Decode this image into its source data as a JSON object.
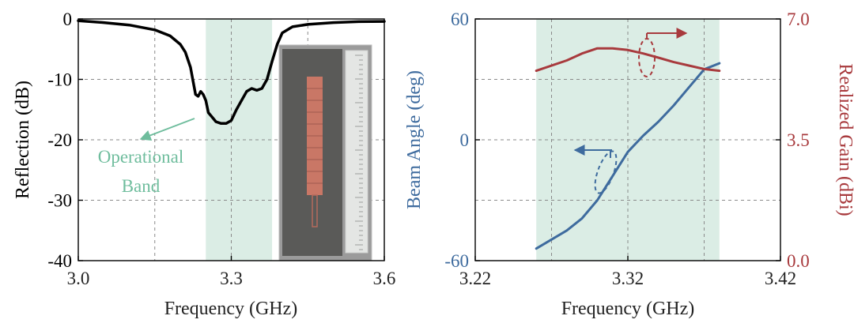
{
  "chart_data": [
    {
      "type": "line",
      "xlabel": "Frequency (GHz)",
      "ylabel": "Reflection (dB)",
      "xlim": [
        3.0,
        3.6
      ],
      "ylim": [
        -40,
        0
      ],
      "xticks": [
        "3.0",
        "3.3",
        "3.6"
      ],
      "xtick_values": [
        3.0,
        3.3,
        3.6
      ],
      "yticks": [
        "0",
        "-10",
        "-20",
        "-30",
        "-40"
      ],
      "ytick_values": [
        0,
        -10,
        -20,
        -30,
        -40
      ],
      "grid": true,
      "band": [
        3.25,
        3.38
      ],
      "band_color": "#dbede5",
      "annotation": {
        "lines": [
          "Operational",
          "Band"
        ],
        "color": "#6fbd9d",
        "arrow_to": [
          3.12,
          -20.3
        ]
      },
      "inset": "photo of fabricated antenna array with ruler",
      "series": [
        {
          "name": "Reflection",
          "color": "#000000",
          "x": [
            3.0,
            3.05,
            3.1,
            3.15,
            3.18,
            3.2,
            3.21,
            3.22,
            3.23,
            3.235,
            3.24,
            3.245,
            3.25,
            3.255,
            3.26,
            3.27,
            3.28,
            3.29,
            3.3,
            3.31,
            3.32,
            3.33,
            3.34,
            3.35,
            3.36,
            3.37,
            3.38,
            3.39,
            3.4,
            3.42,
            3.45,
            3.5,
            3.55,
            3.6
          ],
          "values": [
            -0.3,
            -0.6,
            -1.0,
            -1.8,
            -2.8,
            -4.2,
            -5.5,
            -8.0,
            -12.5,
            -12.8,
            -12.0,
            -12.5,
            -13.5,
            -15.5,
            -16.0,
            -17.0,
            -17.3,
            -17.3,
            -16.8,
            -15.0,
            -13.5,
            -12.0,
            -11.5,
            -11.8,
            -11.5,
            -10.0,
            -7.0,
            -4.2,
            -2.3,
            -1.3,
            -0.9,
            -0.6,
            -0.45,
            -0.4
          ]
        }
      ]
    },
    {
      "type": "line",
      "xlabel": "Frequency (GHz)",
      "ylabel": "Beam Angle (deg)",
      "ylabel_right": "Realized Gain (dBi)",
      "xlim": [
        3.22,
        3.42
      ],
      "ylim": [
        -60,
        60
      ],
      "ylim_right": [
        0.0,
        7.0
      ],
      "xticks": [
        "3.22",
        "3.32",
        "3.42"
      ],
      "xtick_values": [
        3.22,
        3.32,
        3.42
      ],
      "yticks": [
        "60",
        "0",
        "-60"
      ],
      "ytick_values": [
        60,
        0,
        -60
      ],
      "yticks_right": [
        "7.0",
        "3.5",
        "0.0"
      ],
      "ytick_right_values": [
        7.0,
        3.5,
        0.0
      ],
      "grid": true,
      "band": [
        3.26,
        3.38
      ],
      "band_color": "#dbede5",
      "left_axis_color": "#3e6b9e",
      "right_axis_color": "#a83a3d",
      "series": [
        {
          "name": "Beam Angle",
          "axis": "left",
          "color": "#3e6b9e",
          "x": [
            3.26,
            3.28,
            3.29,
            3.3,
            3.31,
            3.32,
            3.33,
            3.34,
            3.35,
            3.36,
            3.37,
            3.38
          ],
          "values": [
            -54,
            -45,
            -39,
            -30,
            -18,
            -6,
            2,
            9,
            17,
            26,
            35,
            38
          ]
        },
        {
          "name": "Realized Gain",
          "axis": "right",
          "color": "#a83a3d",
          "x": [
            3.26,
            3.28,
            3.29,
            3.3,
            3.31,
            3.32,
            3.33,
            3.34,
            3.35,
            3.36,
            3.37,
            3.38
          ],
          "values": [
            5.5,
            5.8,
            6.0,
            6.15,
            6.15,
            6.1,
            6.0,
            5.88,
            5.75,
            5.65,
            5.55,
            5.5
          ]
        }
      ]
    }
  ]
}
